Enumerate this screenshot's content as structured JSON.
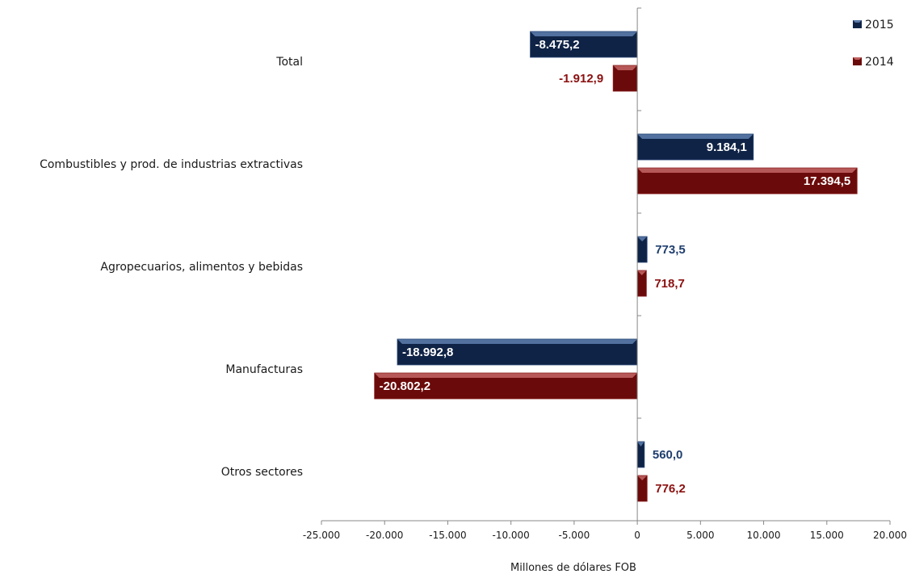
{
  "chart_data": {
    "type": "bar",
    "orientation": "horizontal",
    "categories": [
      "Total",
      "Combustibles y prod. de industrias extractivas",
      "Agropecuarios, alimentos y bebidas",
      "Manufacturas",
      "Otros sectores"
    ],
    "series": [
      {
        "name": "2015",
        "color": "#0f2346",
        "values": [
          -8475.2,
          9184.1,
          773.5,
          -18992.8,
          560.0
        ],
        "labels": [
          "-8.475,2",
          "9.184,1",
          "773,5",
          "-18.992,8",
          "560,0"
        ]
      },
      {
        "name": "2014",
        "color": "#6b0a0a",
        "values": [
          -1912.9,
          17394.5,
          718.7,
          -20802.2,
          776.2
        ],
        "labels": [
          "-1.912,9",
          "17.394,5",
          "718,7",
          "-20.802,2",
          "776,2"
        ]
      }
    ],
    "label_colors": {
      "2015": "#1f3e6e",
      "2014": "#8b1010"
    },
    "xlabel": "Millones de dólares FOB",
    "xlim": [
      -25000,
      20000
    ],
    "x_ticks": [
      -25000,
      -20000,
      -15000,
      -10000,
      -5000,
      0,
      5000,
      10000,
      15000,
      20000
    ],
    "x_tick_labels": [
      "-25.000",
      "-20.000",
      "-15.000",
      "-10.000",
      "-5.000",
      "0",
      "5.000",
      "10.000",
      "15.000",
      "20.000"
    ],
    "grid": false,
    "legend_position": "top-right"
  }
}
